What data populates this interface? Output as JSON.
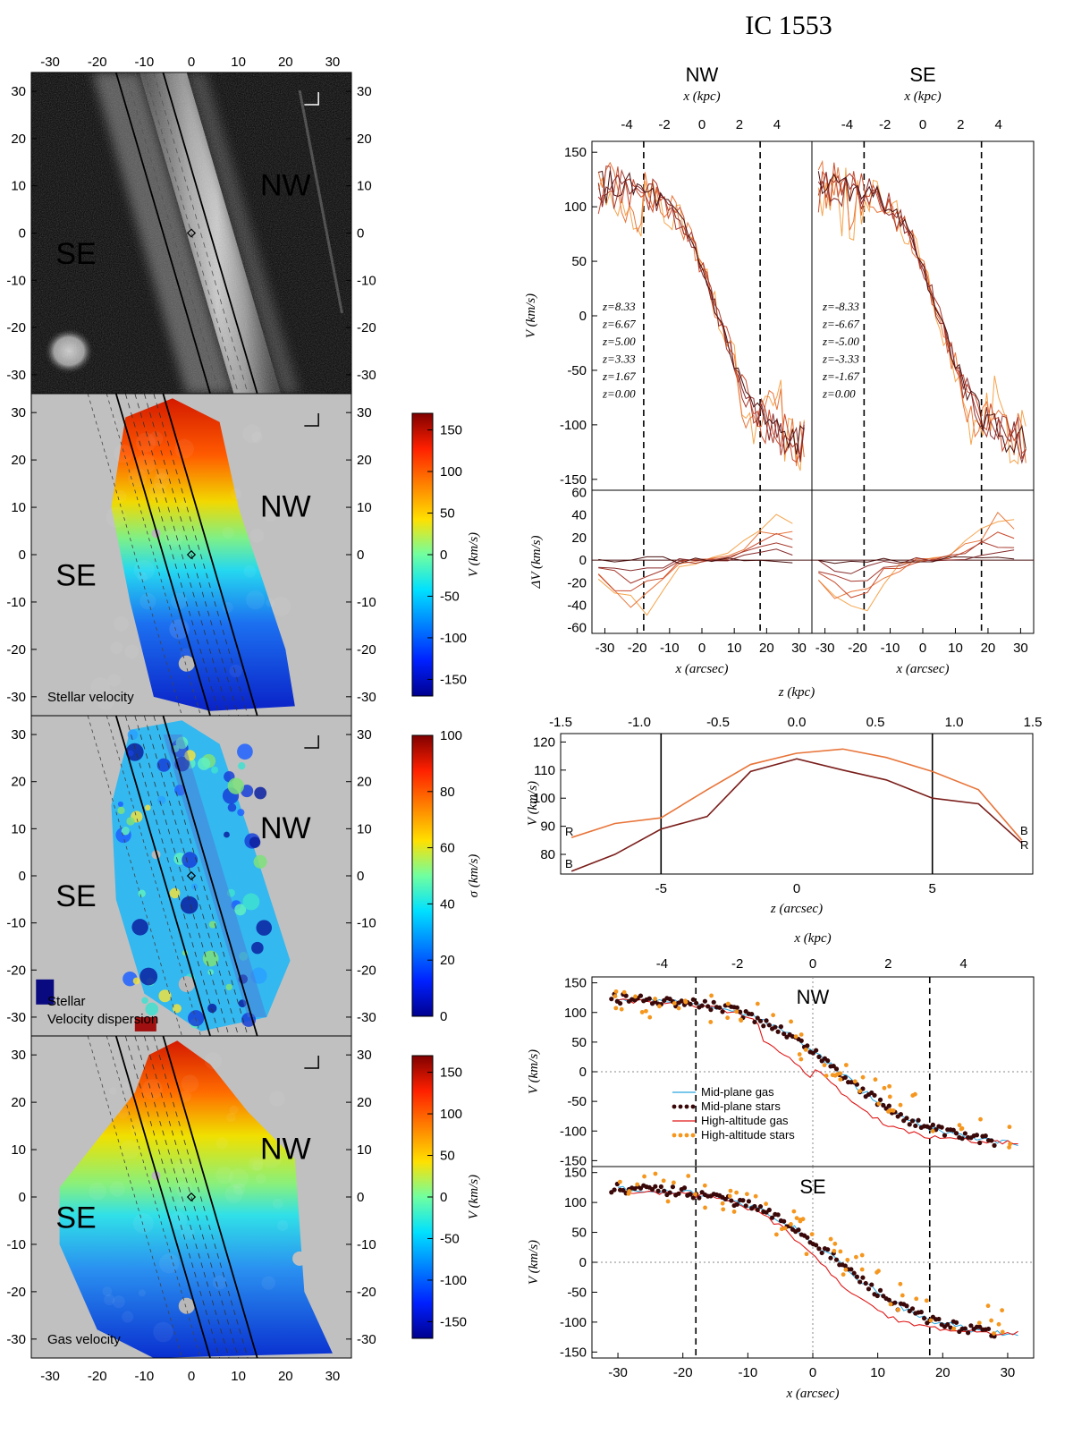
{
  "title": "IC 1553",
  "maps": {
    "ticks": [
      "-30",
      "-20",
      "-10",
      "0",
      "10",
      "20",
      "30"
    ],
    "panels": [
      {
        "kind": "image",
        "label": "",
        "label2": "",
        "left_text": "SE",
        "right_text": "NW"
      },
      {
        "kind": "velocity",
        "label": "Stellar velocity",
        "label2": "",
        "left_text": "SE",
        "right_text": "NW",
        "colorbar": {
          "label": "V (km/s)",
          "ticks": [
            "-150",
            "-100",
            "-50",
            "0",
            "50",
            "100",
            "150"
          ],
          "range": [
            -170,
            170
          ]
        }
      },
      {
        "kind": "dispersion",
        "label": "Stellar",
        "label2": "Velocity dispersion",
        "left_text": "SE",
        "right_text": "NW",
        "colorbar": {
          "label": "σ (km/s)",
          "ticks": [
            "0",
            "20",
            "40",
            "60",
            "80",
            "100"
          ],
          "range": [
            0,
            100
          ]
        }
      },
      {
        "kind": "velocity",
        "label": "Gas velocity",
        "label2": "",
        "left_text": "SE",
        "right_text": "NW",
        "colorbar": {
          "label": "V (km/s)",
          "ticks": [
            "-150",
            "-100",
            "-50",
            "0",
            "50",
            "100",
            "150"
          ],
          "range": [
            -170,
            170
          ]
        }
      }
    ]
  },
  "chart_data": [
    {
      "type": "line",
      "panel": "rotation-curves",
      "titles": [
        "NW",
        "SE"
      ],
      "top_axis_label": "x (kpc)",
      "top_ticks": [
        -4,
        -2,
        0,
        2,
        4
      ],
      "bottom_axis_label": "x (arcsec)",
      "bottom_ticks": [
        -30,
        -20,
        -10,
        0,
        10,
        20,
        30
      ],
      "ylabel": "V (km/s)",
      "ylim": [
        -160,
        160
      ],
      "yticks": [
        -150,
        -100,
        -50,
        0,
        50,
        100,
        150
      ],
      "dy_label": "ΔV (km/s)",
      "dylim": [
        -65,
        62
      ],
      "dy_ticks": [
        -60,
        -40,
        -20,
        0,
        20,
        40,
        60
      ],
      "vlines": [
        -18,
        18
      ],
      "series_nw": [
        "z=8.33",
        "z=6.67",
        "z=5.00",
        "z=3.33",
        "z=1.67",
        "z=0.00"
      ],
      "series_se": [
        "z=-8.33",
        "z=-6.67",
        "z=-5.00",
        "z=-3.33",
        "z=-1.67",
        "z=0.00"
      ],
      "colors": [
        "#f5a54e",
        "#e8753a",
        "#c94c2e",
        "#a63a2e",
        "#862a2a",
        "#4a1210"
      ]
    },
    {
      "type": "line",
      "panel": "vertical-profile",
      "top_axis_label": "z (kpc)",
      "top_ticks": [
        "-1.5",
        "-1.0",
        "-0.5",
        "0.0",
        "0.5",
        "1.0",
        "1.5"
      ],
      "xlabel": "z (arcsec)",
      "xticks": [
        -5,
        0,
        5
      ],
      "ylabel": "V (km/s)",
      "ylim": [
        73,
        123
      ],
      "yticks": [
        80,
        90,
        100,
        110,
        120
      ],
      "vlines": [
        -5,
        5
      ],
      "series": [
        {
          "name": "R",
          "color": "#e8753a",
          "x": [
            -8.3,
            -6.7,
            -5,
            -3.3,
            -1.7,
            0,
            1.7,
            3.3,
            5,
            6.7,
            8.3
          ],
          "values": [
            86,
            91,
            93,
            103,
            112,
            116,
            117.5,
            114.5,
            109.5,
            103,
            85
          ]
        },
        {
          "name": "B",
          "color": "#7a1e1a",
          "x": [
            -8.3,
            -6.7,
            -5,
            -3.3,
            -1.7,
            0,
            1.7,
            3.3,
            5,
            6.7,
            8.3
          ],
          "values": [
            74,
            80,
            89,
            93.5,
            109.5,
            114,
            110,
            106.5,
            100,
            98,
            84
          ]
        }
      ],
      "end_labels": {
        "left": [
          "R",
          "B"
        ],
        "right": [
          "B",
          "R"
        ]
      }
    },
    {
      "type": "scatter",
      "panel": "gas-vs-stars",
      "titles": [
        "NW",
        "SE"
      ],
      "top_axis_label": "x (kpc)",
      "top_ticks": [
        -4,
        -2,
        0,
        2,
        4
      ],
      "xlabel": "x (arcsec)",
      "xticks": [
        -30,
        -20,
        -10,
        0,
        10,
        20,
        30
      ],
      "ylabel": "V (km/s)",
      "ylim": [
        -160,
        160
      ],
      "yticks": [
        -150,
        -100,
        -50,
        0,
        50,
        100,
        150
      ],
      "vlines": [
        -18,
        18
      ],
      "legend": [
        {
          "name": "Mid-plane gas",
          "color": "#29a8e0",
          "kind": "line"
        },
        {
          "name": "Mid-plane stars",
          "color": "#3a0808",
          "kind": "dots"
        },
        {
          "name": "High-altitude gas",
          "color": "#e01818",
          "kind": "line"
        },
        {
          "name": "High-altitude stars",
          "color": "#f5961e",
          "kind": "dots"
        }
      ]
    }
  ]
}
